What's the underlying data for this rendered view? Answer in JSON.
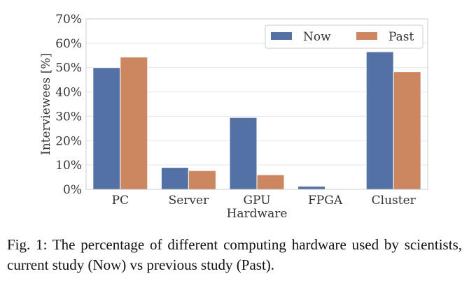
{
  "chart_data": {
    "type": "bar",
    "title": "",
    "xlabel": "Hardware",
    "ylabel": "Interviewees [%]",
    "categories": [
      "PC",
      "Server",
      "GPU",
      "FPGA",
      "Cluster"
    ],
    "series": [
      {
        "name": "Now",
        "color": "#5471a5",
        "values": [
          50.0,
          9.0,
          29.5,
          1.3,
          56.5
        ]
      },
      {
        "name": "Past",
        "color": "#cc8660",
        "values": [
          54.3,
          7.7,
          6.0,
          0.0,
          48.3
        ]
      }
    ],
    "ylim": [
      0,
      70
    ],
    "yticks": [
      "0%",
      "10%",
      "20%",
      "30%",
      "40%",
      "50%",
      "60%",
      "70%"
    ],
    "grid": true,
    "legend_position": "top-right"
  },
  "caption": "Fig. 1: The percentage of different computing hardware used by scientists, current study (Now) vs previous study (Past)."
}
